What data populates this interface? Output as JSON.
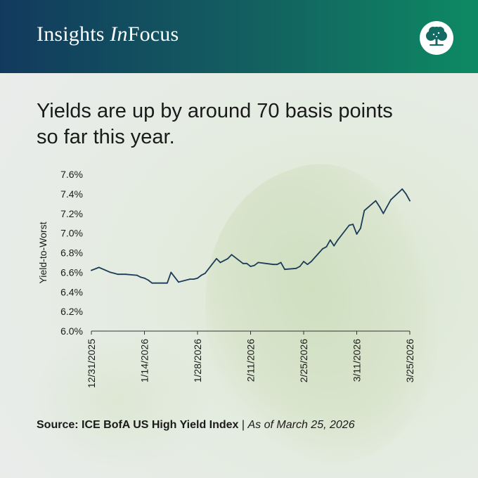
{
  "header": {
    "brand_part1": "Insights ",
    "brand_part2": "In",
    "brand_part3": "Focus",
    "logo_icon": "tree-icon",
    "colors": {
      "from": "#123a5e",
      "to": "#0d8a63"
    }
  },
  "headline": {
    "line1": "Yields are up by around 70 basis points",
    "line2": "so far this year."
  },
  "source": {
    "bold": "Source: ICE BofA US High Yield Index",
    "separator": " | ",
    "italic": "As of March 25, 2026"
  },
  "chart_data": {
    "type": "line",
    "ylabel": "Yield-to-Worst",
    "ylim": [
      6.0,
      7.6
    ],
    "yticks": [
      6.0,
      6.2,
      6.4,
      6.6,
      6.8,
      7.0,
      7.2,
      7.4,
      7.6
    ],
    "ytick_labels": [
      "6.0%",
      "6.2%",
      "6.4%",
      "6.6%",
      "6.8%",
      "7.0%",
      "7.2%",
      "7.4%",
      "7.6%"
    ],
    "xtick_labels": [
      "12/31/2025",
      "1/14/2026",
      "1/28/2026",
      "2/11/2026",
      "2/25/2026",
      "3/11/2026",
      "3/25/2026"
    ],
    "x_start": "2025-12-31",
    "x_end": "2026-03-25",
    "line_color": "#1c3b57",
    "grid": false,
    "series": [
      {
        "points": [
          [
            "2025-12-31",
            6.62
          ],
          [
            "2026-01-02",
            6.65
          ],
          [
            "2026-01-05",
            6.6
          ],
          [
            "2026-01-06",
            6.59
          ],
          [
            "2026-01-07",
            6.58
          ],
          [
            "2026-01-08",
            6.58
          ],
          [
            "2026-01-09",
            6.58
          ],
          [
            "2026-01-12",
            6.57
          ],
          [
            "2026-01-13",
            6.55
          ],
          [
            "2026-01-14",
            6.54
          ],
          [
            "2026-01-15",
            6.52
          ],
          [
            "2026-01-16",
            6.49
          ],
          [
            "2026-01-20",
            6.49
          ],
          [
            "2026-01-21",
            6.6
          ],
          [
            "2026-01-22",
            6.55
          ],
          [
            "2026-01-23",
            6.5
          ],
          [
            "2026-01-26",
            6.53
          ],
          [
            "2026-01-27",
            6.53
          ],
          [
            "2026-01-28",
            6.54
          ],
          [
            "2026-01-29",
            6.57
          ],
          [
            "2026-01-30",
            6.59
          ],
          [
            "2026-02-02",
            6.74
          ],
          [
            "2026-02-03",
            6.7
          ],
          [
            "2026-02-04",
            6.72
          ],
          [
            "2026-02-05",
            6.74
          ],
          [
            "2026-02-06",
            6.78
          ],
          [
            "2026-02-09",
            6.69
          ],
          [
            "2026-02-10",
            6.69
          ],
          [
            "2026-02-11",
            6.66
          ],
          [
            "2026-02-12",
            6.67
          ],
          [
            "2026-02-13",
            6.7
          ],
          [
            "2026-02-17",
            6.68
          ],
          [
            "2026-02-18",
            6.68
          ],
          [
            "2026-02-19",
            6.7
          ],
          [
            "2026-02-20",
            6.63
          ],
          [
            "2026-02-23",
            6.64
          ],
          [
            "2026-02-24",
            6.66
          ],
          [
            "2026-02-25",
            6.71
          ],
          [
            "2026-02-26",
            6.68
          ],
          [
            "2026-02-27",
            6.71
          ],
          [
            "2026-03-02",
            6.84
          ],
          [
            "2026-03-03",
            6.86
          ],
          [
            "2026-03-04",
            6.93
          ],
          [
            "2026-03-05",
            6.87
          ],
          [
            "2026-03-06",
            6.93
          ],
          [
            "2026-03-09",
            7.08
          ],
          [
            "2026-03-10",
            7.09
          ],
          [
            "2026-03-11",
            6.99
          ],
          [
            "2026-03-12",
            7.05
          ],
          [
            "2026-03-13",
            7.23
          ],
          [
            "2026-03-16",
            7.33
          ],
          [
            "2026-03-17",
            7.27
          ],
          [
            "2026-03-18",
            7.2
          ],
          [
            "2026-03-19",
            7.27
          ],
          [
            "2026-03-20",
            7.34
          ],
          [
            "2026-03-23",
            7.45
          ],
          [
            "2026-03-24",
            7.4
          ],
          [
            "2026-03-25",
            7.33
          ]
        ]
      }
    ]
  }
}
